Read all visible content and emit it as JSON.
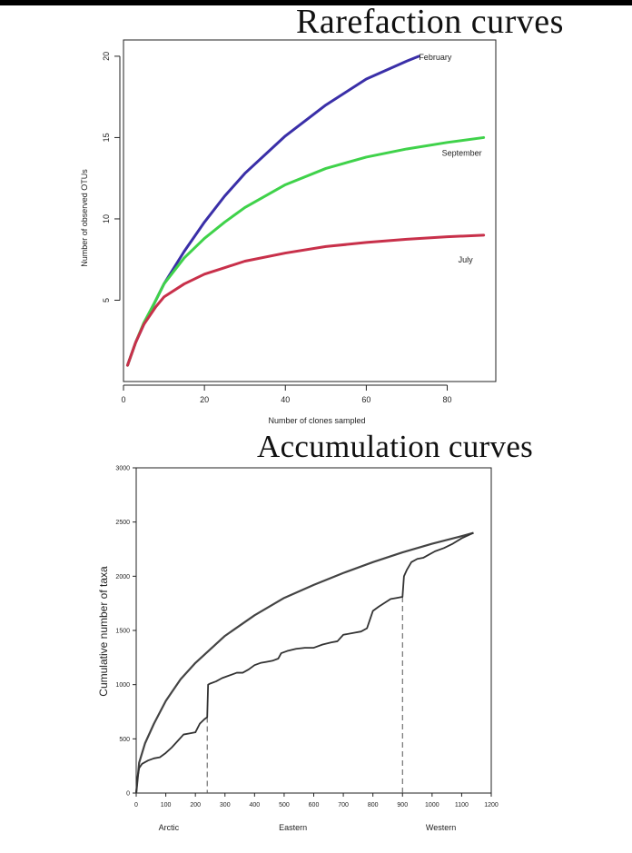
{
  "slide": {
    "title_top": "Rarefaction curves",
    "title_bottom": "Accumulation curves"
  },
  "chart_data": [
    {
      "type": "line",
      "title": "",
      "xlabel": "Number of clones sampled",
      "ylabel": "Number of observed OTUs",
      "xlim": [
        0,
        92
      ],
      "ylim": [
        0,
        21
      ],
      "xticks": [
        0,
        20,
        40,
        60,
        80
      ],
      "yticks": [
        5,
        10,
        15,
        20
      ],
      "grid": false,
      "legend": "direct labels at line ends",
      "series": [
        {
          "name": "February",
          "color": "#3a2fa8",
          "x": [
            1,
            3,
            5,
            8,
            10,
            15,
            20,
            25,
            30,
            40,
            50,
            60,
            70,
            73
          ],
          "y": [
            1,
            2.4,
            3.5,
            5,
            6,
            8,
            9.8,
            11.4,
            12.8,
            15.1,
            17.0,
            18.6,
            19.7,
            20
          ]
        },
        {
          "name": "September",
          "color": "#3fd24a",
          "x": [
            1,
            3,
            5,
            8,
            10,
            15,
            20,
            25,
            30,
            40,
            50,
            60,
            70,
            80,
            89
          ],
          "y": [
            1,
            2.4,
            3.6,
            5,
            6,
            7.6,
            8.8,
            9.8,
            10.7,
            12.1,
            13.1,
            13.8,
            14.3,
            14.7,
            15
          ]
        },
        {
          "name": "July",
          "color": "#c8304a",
          "x": [
            1,
            3,
            5,
            8,
            10,
            15,
            20,
            25,
            30,
            40,
            50,
            60,
            70,
            80,
            89
          ],
          "y": [
            1,
            2.4,
            3.5,
            4.6,
            5.2,
            6.0,
            6.6,
            7.0,
            7.4,
            7.9,
            8.3,
            8.55,
            8.75,
            8.9,
            9
          ]
        }
      ]
    },
    {
      "type": "line",
      "title": "",
      "xlabel": "",
      "ylabel": "Cumulative number of taxa",
      "xlim": [
        0,
        1200
      ],
      "ylim": [
        0,
        3000
      ],
      "xticks": [
        0,
        100,
        200,
        300,
        400,
        500,
        600,
        700,
        800,
        900,
        1000,
        1100,
        1200
      ],
      "yticks": [
        0,
        500,
        1000,
        1500,
        2000,
        2500,
        3000
      ],
      "grid": false,
      "region_labels": [
        {
          "text": "Arctic",
          "x": 110
        },
        {
          "text": "Eastern",
          "x": 530
        },
        {
          "text": "Western",
          "x": 1030
        }
      ],
      "dividers_x": [
        240,
        900
      ],
      "series": [
        {
          "name": "",
          "style": "smooth",
          "x": [
            0,
            10,
            30,
            60,
            100,
            150,
            200,
            300,
            400,
            500,
            600,
            700,
            800,
            900,
            1000,
            1100,
            1140
          ],
          "y": [
            0,
            280,
            460,
            640,
            850,
            1050,
            1200,
            1450,
            1640,
            1800,
            1920,
            2030,
            2130,
            2220,
            2300,
            2370,
            2400
          ]
        },
        {
          "name": "",
          "style": "stepped",
          "x": [
            0,
            5,
            10,
            20,
            40,
            60,
            80,
            100,
            120,
            140,
            160,
            180,
            200,
            215,
            230,
            240,
            243,
            250,
            270,
            290,
            310,
            340,
            360,
            380,
            400,
            420,
            440,
            460,
            480,
            490,
            510,
            540,
            570,
            600,
            630,
            660,
            680,
            700,
            740,
            760,
            780,
            790,
            800,
            820,
            860,
            880,
            900,
            905,
            915,
            930,
            950,
            970,
            990,
            1010,
            1040,
            1070,
            1100,
            1140
          ],
          "y": [
            0,
            150,
            230,
            270,
            300,
            320,
            330,
            370,
            420,
            480,
            540,
            550,
            560,
            640,
            680,
            700,
            1000,
            1010,
            1030,
            1060,
            1080,
            1110,
            1110,
            1140,
            1180,
            1200,
            1210,
            1220,
            1240,
            1290,
            1310,
            1330,
            1340,
            1340,
            1370,
            1390,
            1400,
            1460,
            1480,
            1490,
            1520,
            1600,
            1680,
            1720,
            1790,
            1800,
            1810,
            2000,
            2060,
            2130,
            2160,
            2170,
            2200,
            2230,
            2260,
            2300,
            2350,
            2400
          ]
        }
      ]
    }
  ]
}
